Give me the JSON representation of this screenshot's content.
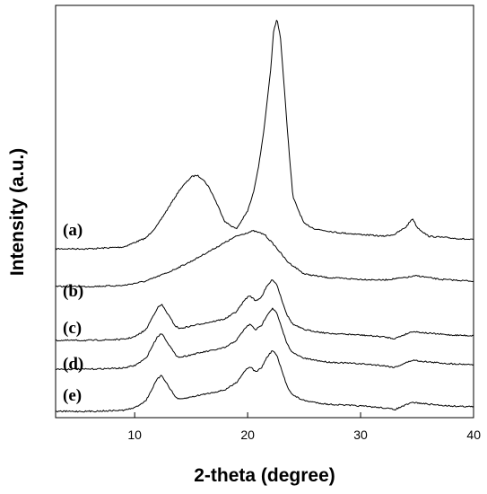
{
  "chart_data": {
    "type": "line",
    "title": "",
    "xlabel": "2-theta (degree)",
    "ylabel": "Intensity (a.u.)",
    "xlim": [
      3,
      40
    ],
    "xticks": [
      10,
      20,
      30,
      40
    ],
    "y_ticks_shown": false,
    "grid": false,
    "legend": "none",
    "series_offset": "vertical stack",
    "series": [
      {
        "name": "(a)",
        "x": [
          3,
          6,
          9,
          11,
          12,
          13,
          14,
          15,
          15.5,
          16,
          16.5,
          17,
          18,
          19,
          20,
          20.5,
          21,
          21.5,
          22,
          22.3,
          22.6,
          22.9,
          23.2,
          23.6,
          24,
          25,
          26,
          28,
          30,
          32,
          33,
          34,
          34.6,
          35,
          36,
          38,
          40
        ],
        "y": [
          1.0,
          1.0,
          1.5,
          4.0,
          7.5,
          12.5,
          17.5,
          21.0,
          21.5,
          20.5,
          18.5,
          15.5,
          8.5,
          6.5,
          11.5,
          16.5,
          24.5,
          35.5,
          49.5,
          61.5,
          65.0,
          60.0,
          47.5,
          31.0,
          15.5,
          8.0,
          6.5,
          5.5,
          5.0,
          4.5,
          5.0,
          7.0,
          9.5,
          7.0,
          4.5,
          4.0,
          3.5
        ]
      },
      {
        "name": "(b)",
        "x": [
          3,
          6,
          9,
          11,
          13,
          15,
          17,
          19,
          20.5,
          21.5,
          22.5,
          23.5,
          25,
          27,
          30,
          32,
          34,
          35,
          37,
          40
        ],
        "y": [
          0.5,
          0.5,
          0.8,
          2.0,
          4.5,
          7.5,
          11.0,
          14.5,
          16.0,
          15.0,
          11.5,
          7.5,
          4.0,
          3.0,
          2.5,
          2.3,
          3.0,
          3.5,
          2.5,
          2.0
        ]
      },
      {
        "name": "(c)",
        "x": [
          3,
          6,
          9,
          10,
          11,
          11.5,
          12,
          12.4,
          13,
          13.6,
          14,
          15,
          16,
          17,
          18,
          19,
          19.8,
          20.2,
          20.7,
          21.2,
          21.7,
          22.2,
          22.6,
          23,
          23.5,
          24,
          25,
          27,
          30,
          32,
          33,
          34.6,
          36,
          38,
          40
        ],
        "y": [
          0.5,
          0.5,
          0.8,
          1.5,
          3.5,
          6.5,
          9.5,
          10.5,
          7.5,
          4.5,
          3.8,
          4.5,
          5.2,
          5.8,
          6.5,
          8.5,
          12.0,
          13.0,
          11.5,
          12.5,
          15.5,
          17.5,
          16.0,
          12.0,
          7.5,
          5.0,
          3.5,
          2.5,
          2.0,
          1.5,
          1.0,
          3.0,
          2.5,
          2.0,
          1.8
        ]
      },
      {
        "name": "(d)",
        "x": [
          3,
          6,
          9,
          10,
          11,
          11.5,
          12,
          12.4,
          13,
          13.6,
          14,
          15,
          16,
          17,
          18,
          19,
          19.8,
          20.2,
          20.7,
          21.2,
          21.7,
          22.2,
          22.6,
          23,
          23.5,
          24,
          25,
          27,
          30,
          32,
          33,
          34.6,
          36,
          38,
          40
        ],
        "y": [
          0.5,
          0.5,
          0.8,
          1.5,
          3.5,
          6.5,
          9.5,
          10.5,
          7.5,
          4.5,
          3.8,
          4.5,
          5.2,
          5.8,
          6.5,
          8.5,
          12.0,
          13.0,
          11.5,
          12.5,
          15.5,
          17.5,
          16.0,
          12.0,
          7.5,
          5.0,
          3.5,
          2.5,
          2.0,
          1.5,
          1.0,
          3.0,
          2.5,
          2.0,
          1.8
        ]
      },
      {
        "name": "(e)",
        "x": [
          3,
          6,
          9,
          10,
          11,
          11.5,
          12,
          12.4,
          13,
          13.6,
          14,
          15,
          16,
          17,
          18,
          19,
          19.8,
          20.2,
          20.7,
          21.2,
          21.7,
          22.2,
          22.6,
          23,
          23.5,
          24,
          25,
          27,
          30,
          32,
          33,
          34.6,
          36,
          38,
          40
        ],
        "y": [
          0.5,
          0.5,
          0.8,
          1.5,
          3.5,
          6.5,
          9.5,
          10.5,
          7.5,
          4.5,
          3.8,
          4.5,
          5.2,
          5.8,
          6.5,
          8.5,
          12.0,
          13.0,
          11.5,
          12.5,
          15.5,
          17.5,
          16.0,
          12.0,
          7.5,
          5.0,
          3.5,
          2.5,
          2.0,
          1.5,
          1.0,
          3.0,
          2.5,
          2.0,
          1.8
        ]
      }
    ]
  }
}
